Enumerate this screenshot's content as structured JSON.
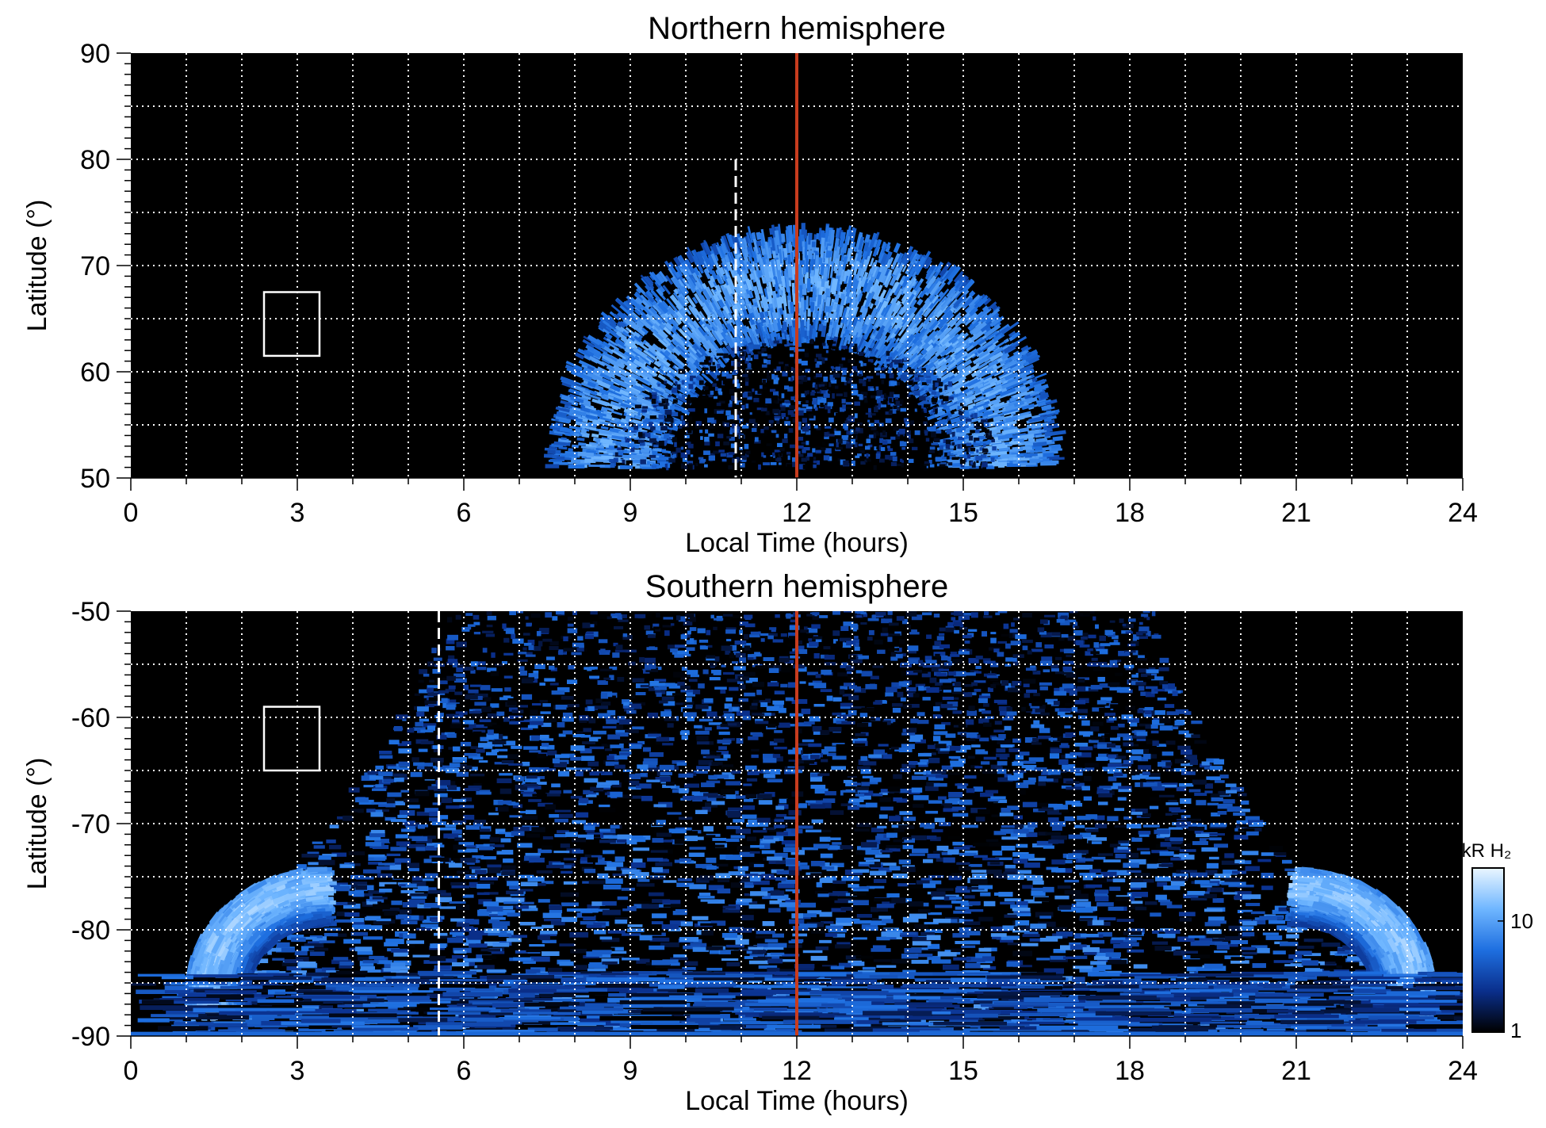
{
  "chart_data": [
    {
      "type": "heatmap",
      "title": "Northern hemisphere",
      "xlabel": "Local Time (hours)",
      "ylabel": "Latitude (°)",
      "xlim": [
        0,
        24
      ],
      "ylim": [
        50,
        90
      ],
      "xticks": [
        "0",
        "3",
        "6",
        "9",
        "12",
        "15",
        "18",
        "21",
        "24"
      ],
      "yticks": [
        "50",
        "60",
        "70",
        "80",
        "90"
      ],
      "grid": true,
      "noon_line_hour": 12,
      "dashed_line": {
        "hour": 10.9,
        "lat_range": [
          50,
          80
        ]
      },
      "box": {
        "x_range": [
          2.4,
          3.4
        ],
        "lat_range": [
          61.5,
          67.5
        ]
      },
      "emission": [
        {
          "kind": "auroral_oval",
          "center_hour": 12.15,
          "center_lat": 51,
          "outer_lat": 73.5,
          "inner_lat": 63,
          "half_width_hours": 4.6,
          "peak_kR": 14
        },
        {
          "kind": "diffuse_cap",
          "center_hour": 12.15,
          "center_lat": 51,
          "outer_lat": 63,
          "half_width_hours": 3.5,
          "peak_kR": 6
        }
      ]
    },
    {
      "type": "heatmap",
      "title": "Southern hemisphere",
      "xlabel": "Local Time (hours)",
      "ylabel": "Latitude (°)",
      "xlim": [
        0,
        24
      ],
      "ylim": [
        -90,
        -50
      ],
      "xticks": [
        "0",
        "3",
        "6",
        "9",
        "12",
        "15",
        "18",
        "21",
        "24"
      ],
      "yticks": [
        "-50",
        "-60",
        "-70",
        "-80",
        "-90"
      ],
      "grid": true,
      "noon_line_hour": 12,
      "dashed_line": {
        "hour": 5.55,
        "lat_range": [
          -90,
          -50
        ]
      },
      "box": {
        "x_range": [
          2.4,
          3.4
        ],
        "lat_range": [
          -65,
          -59
        ]
      },
      "emission": [
        {
          "kind": "dayside_region",
          "from_hour": 5.5,
          "to_hour": 18.5,
          "peak_kR": 8
        },
        {
          "kind": "auroral_oval_dawn",
          "hours": [
            1.5,
            5.5
          ],
          "lat_range": [
            -84,
            -71
          ],
          "peak_kR": 20
        },
        {
          "kind": "auroral_oval_dusk",
          "hours": [
            19,
            23
          ],
          "lat_range": [
            -84,
            -71
          ],
          "peak_kR": 20
        },
        {
          "kind": "polar_band",
          "lat_range": [
            -90,
            -84
          ],
          "peak_kR": 6
        }
      ]
    }
  ],
  "colorbar": {
    "label": "kR H₂",
    "ticks": [
      "1",
      "10"
    ],
    "scale": "log",
    "range": [
      1,
      30
    ],
    "colors": [
      "#000000",
      "#0a2f8c",
      "#1e6fe0",
      "#6fb6ff",
      "#eaf6ff"
    ]
  },
  "line_colors": {
    "noon": "#c83c1e",
    "grid": "#ffffff",
    "box": "#ffffff"
  }
}
